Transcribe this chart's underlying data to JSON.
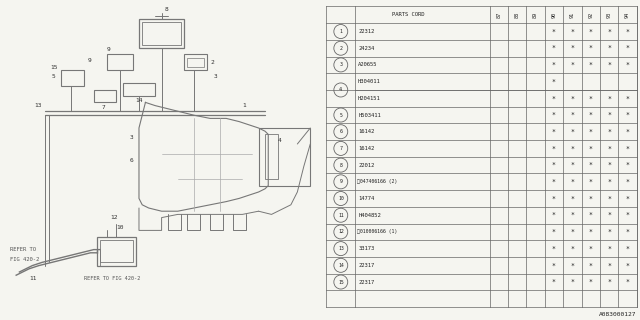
{
  "part_number_label": "A083000127",
  "rows": [
    {
      "num": "1",
      "part": "22312",
      "marks": [
        0,
        0,
        0,
        1,
        1,
        1,
        1,
        1
      ]
    },
    {
      "num": "2",
      "part": "24234",
      "marks": [
        0,
        0,
        0,
        1,
        1,
        1,
        1,
        1
      ]
    },
    {
      "num": "3",
      "part": "A20655",
      "marks": [
        0,
        0,
        0,
        1,
        1,
        1,
        1,
        1
      ]
    },
    {
      "num": "4a",
      "part": "H304011",
      "marks": [
        0,
        0,
        0,
        1,
        0,
        0,
        0,
        0
      ]
    },
    {
      "num": "4b",
      "part": "H204151",
      "marks": [
        0,
        0,
        0,
        1,
        1,
        1,
        1,
        1
      ]
    },
    {
      "num": "5",
      "part": "H503411",
      "marks": [
        0,
        0,
        0,
        1,
        1,
        1,
        1,
        1
      ]
    },
    {
      "num": "6",
      "part": "16142",
      "marks": [
        0,
        0,
        0,
        1,
        1,
        1,
        1,
        1
      ]
    },
    {
      "num": "7",
      "part": "16142",
      "marks": [
        0,
        0,
        0,
        1,
        1,
        1,
        1,
        1
      ]
    },
    {
      "num": "8",
      "part": "22012",
      "marks": [
        0,
        0,
        0,
        1,
        1,
        1,
        1,
        1
      ]
    },
    {
      "num": "9",
      "part": "S047406166 (2)",
      "marks": [
        0,
        0,
        0,
        1,
        1,
        1,
        1,
        1
      ]
    },
    {
      "num": "10",
      "part": "14774",
      "marks": [
        0,
        0,
        0,
        1,
        1,
        1,
        1,
        1
      ]
    },
    {
      "num": "11",
      "part": "H404852",
      "marks": [
        0,
        0,
        0,
        1,
        1,
        1,
        1,
        1
      ]
    },
    {
      "num": "12",
      "part": "B010006166 (1)",
      "marks": [
        0,
        0,
        0,
        1,
        1,
        1,
        1,
        1
      ]
    },
    {
      "num": "13",
      "part": "33173",
      "marks": [
        0,
        0,
        0,
        1,
        1,
        1,
        1,
        1
      ]
    },
    {
      "num": "14",
      "part": "22317",
      "marks": [
        0,
        0,
        0,
        1,
        1,
        1,
        1,
        1
      ]
    },
    {
      "num": "15",
      "part": "22317",
      "marks": [
        0,
        0,
        0,
        1,
        1,
        1,
        1,
        1
      ]
    }
  ],
  "year_cols": [
    "87",
    "88",
    "89",
    "90",
    "91",
    "92",
    "93",
    "94"
  ],
  "bg_color": "#f5f5f0",
  "lc": "#666666",
  "tc": "#222222"
}
